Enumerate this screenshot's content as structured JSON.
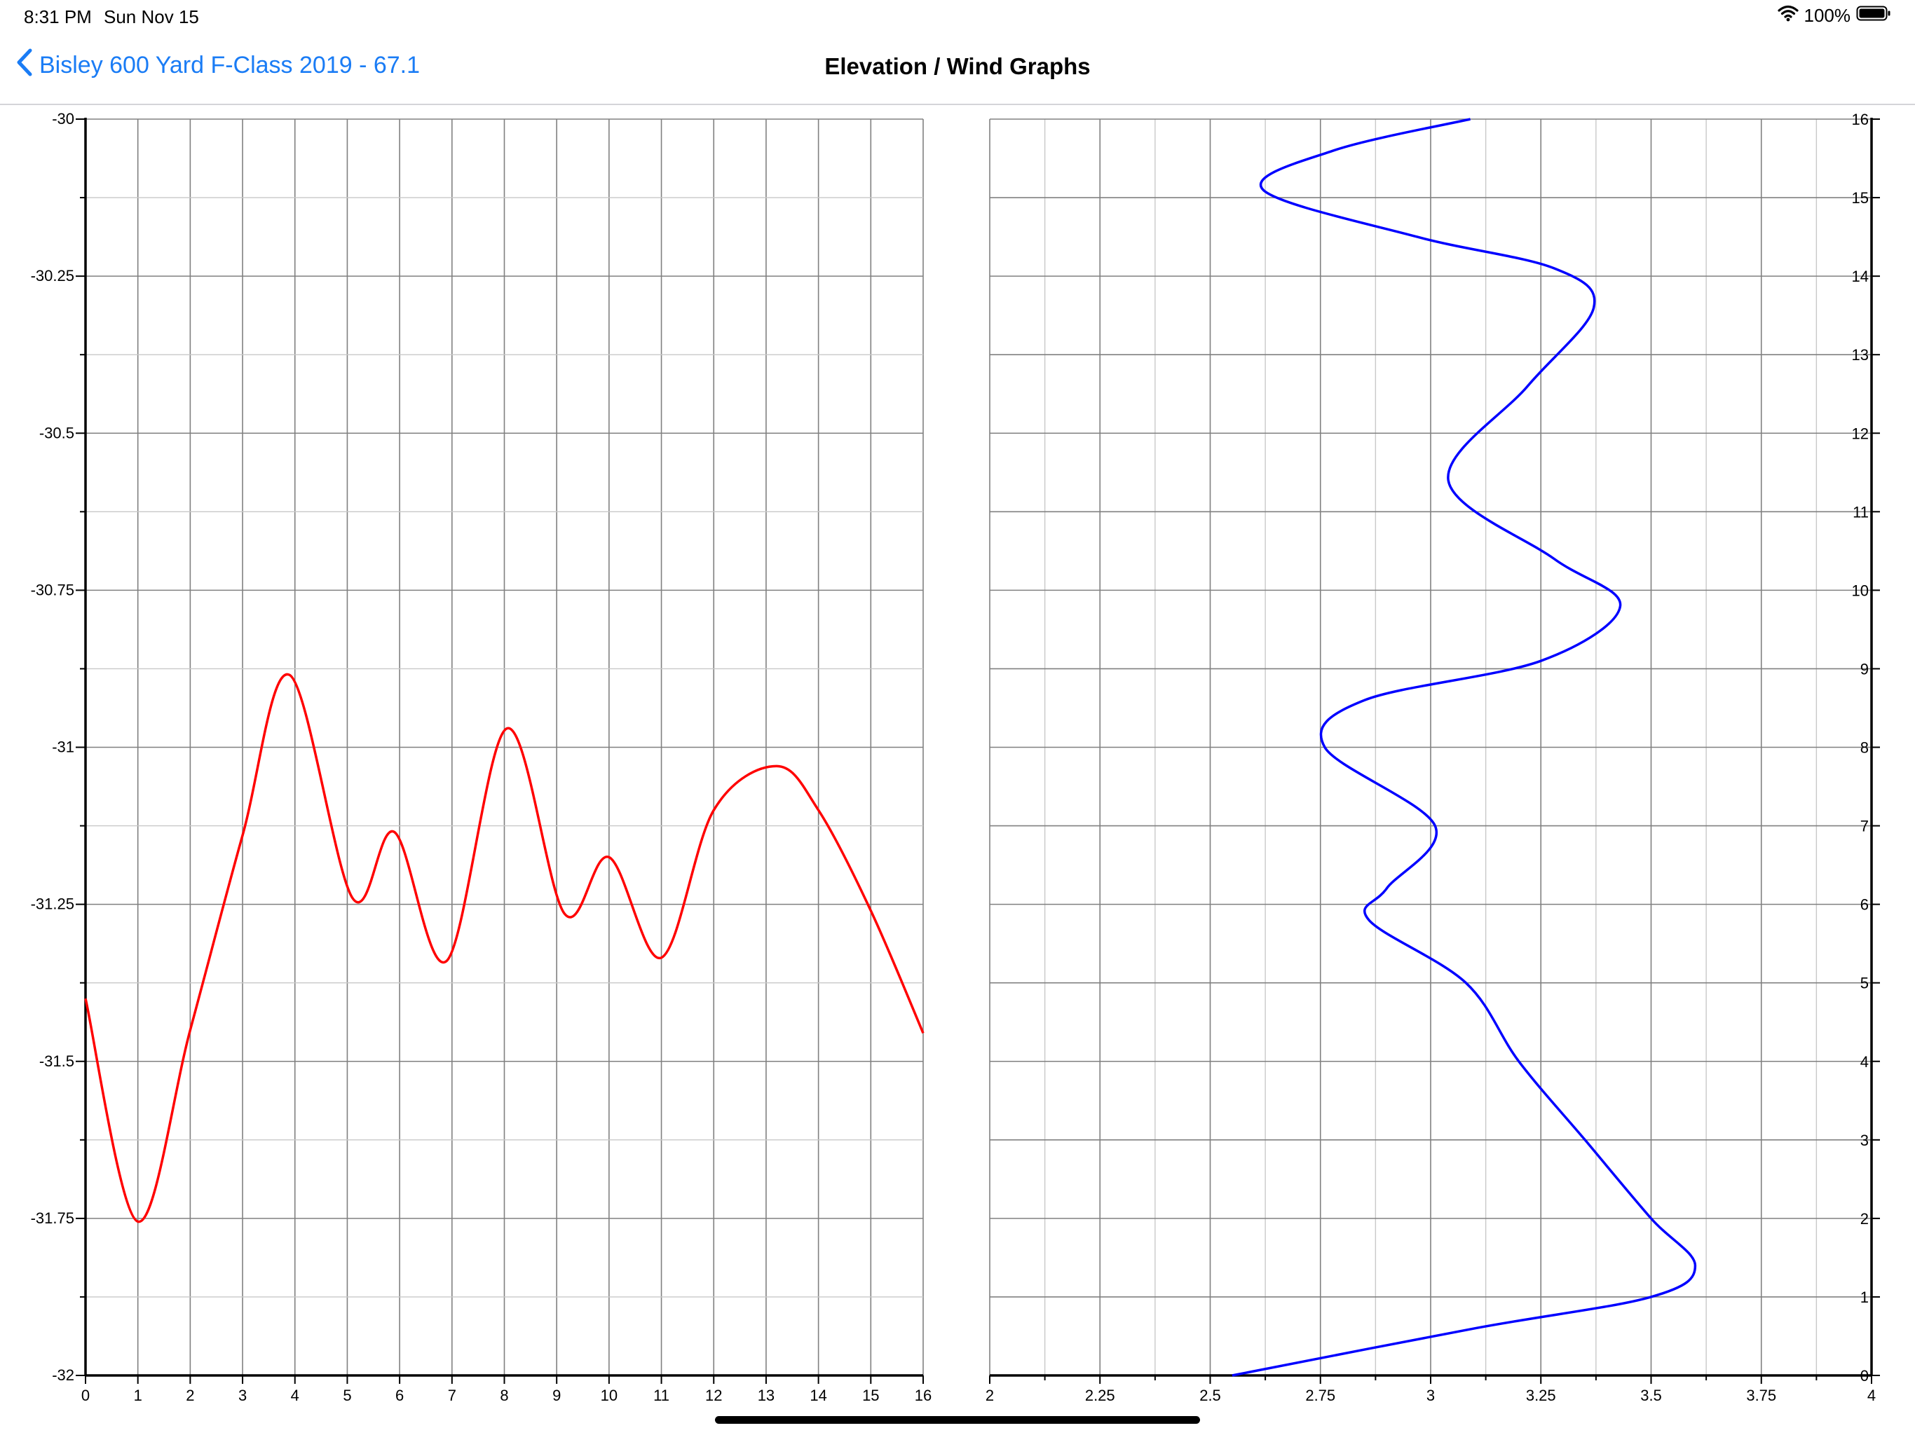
{
  "status_bar": {
    "time": "8:31 PM",
    "date": "Sun Nov 15",
    "battery": "100%",
    "wifi_icon": "wifi-icon",
    "battery_icon": "battery-icon"
  },
  "nav": {
    "back_label": "Bisley 600 Yard F-Class 2019 - 67.1",
    "title": "Elevation / Wind Graphs",
    "back_icon": "chevron-left-icon"
  },
  "colors": {
    "link": "#1a7cf5",
    "elevation_line": "#ff0000",
    "wind_line": "#0000ff",
    "grid_major": "#808080",
    "grid_minor": "#c8c8c8"
  },
  "chart_data": [
    {
      "type": "line",
      "title": "",
      "xlabel": "",
      "ylabel": "",
      "xlim": [
        0,
        16
      ],
      "ylim": [
        -32,
        -30
      ],
      "grid": true,
      "x_tick_labels": [
        "0",
        "1",
        "2",
        "3",
        "4",
        "5",
        "6",
        "7",
        "8",
        "9",
        "10",
        "11",
        "12",
        "13",
        "14",
        "15",
        "16"
      ],
      "y_tick_labels": [
        "-30",
        "-30.25",
        "-30.5",
        "-30.75",
        "-31",
        "-31.25",
        "-31.5",
        "-31.75",
        "-32"
      ],
      "series": [
        {
          "color": "#ff0000",
          "x": [
            0,
            1,
            2,
            3,
            3.9,
            5.1,
            5.9,
            6.9,
            8.05,
            9.15,
            10,
            11,
            12,
            13.2,
            14,
            15,
            16
          ],
          "y": [
            -31.4,
            -31.755,
            -31.45,
            -31.14,
            -30.885,
            -31.24,
            -31.135,
            -31.34,
            -30.97,
            -31.265,
            -31.175,
            -31.335,
            -31.1,
            -31.03,
            -31.1,
            -31.26,
            -31.455
          ]
        }
      ]
    },
    {
      "type": "line",
      "title": "",
      "xlabel": "",
      "ylabel": "",
      "xlim": [
        2,
        4
      ],
      "ylim": [
        0,
        16
      ],
      "grid": true,
      "y_axis_side": "right",
      "x_tick_labels": [
        "2",
        "2.25",
        "2.5",
        "2.75",
        "3",
        "3.25",
        "3.5",
        "3.75",
        "4"
      ],
      "y_tick_labels": [
        "0",
        "1",
        "2",
        "3",
        "4",
        "5",
        "6",
        "7",
        "8",
        "9",
        "10",
        "11",
        "12",
        "13",
        "14",
        "15",
        "16"
      ],
      "series": [
        {
          "color": "#0000ff",
          "x": [
            2.55,
            3.1,
            3.5,
            3.6,
            3.5,
            3.35,
            3.2,
            3.08,
            2.86,
            2.9,
            3.01,
            2.76,
            2.85,
            3.25,
            3.43,
            3.28,
            3.04,
            3.22,
            3.37,
            3.28,
            2.97,
            2.62,
            2.78,
            3.09
          ],
          "y": [
            0,
            0.6,
            1.0,
            1.4,
            2.0,
            3.0,
            4.0,
            5.0,
            5.8,
            6.2,
            7.0,
            8.0,
            8.6,
            9.1,
            9.8,
            10.4,
            11.4,
            12.6,
            13.6,
            14.1,
            14.5,
            15.1,
            15.6,
            16
          ]
        }
      ]
    }
  ]
}
